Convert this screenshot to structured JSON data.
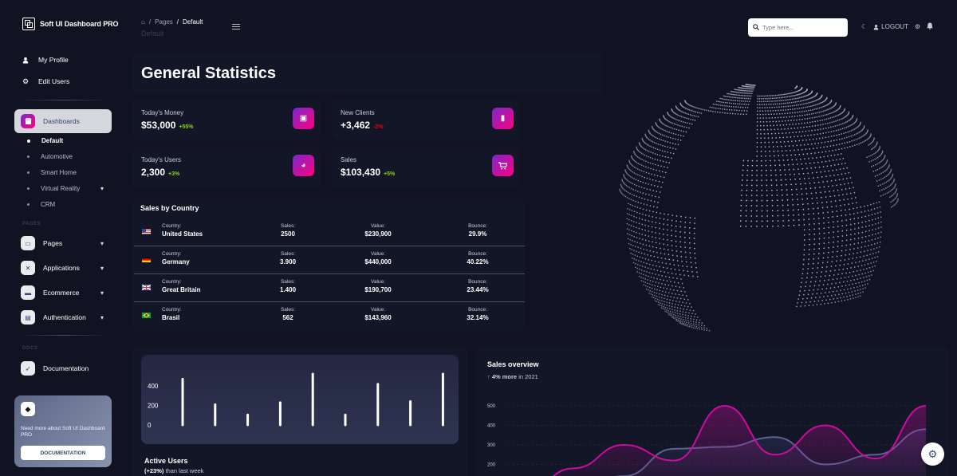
{
  "brand": {
    "title": "Soft UI Dashboard PRO"
  },
  "sidebar": {
    "top_links": [
      {
        "label": "My Profile",
        "icon": "user-icon"
      },
      {
        "label": "Edit Users",
        "icon": "gear-icon"
      }
    ],
    "dashboards": {
      "label": "Dashboards",
      "items": [
        {
          "label": "Default",
          "active": true
        },
        {
          "label": "Automotive"
        },
        {
          "label": "Smart Home"
        },
        {
          "label": "Virtual Reality"
        },
        {
          "label": "CRM"
        }
      ]
    },
    "pages_section": "PAGES",
    "nav": [
      {
        "label": "Pages"
      },
      {
        "label": "Applications"
      },
      {
        "label": "Ecommerce"
      },
      {
        "label": "Authentication"
      }
    ],
    "docs_section": "DOCS",
    "documentation": "Documentation",
    "help_card": {
      "text": "Need more about Soft UI Dashboard PRO",
      "button": "DOCUMENTATION"
    }
  },
  "topbar": {
    "breadcrumb": {
      "root": "Pages",
      "current": "Default"
    },
    "page_title": "Default",
    "search_placeholder": "Type here...",
    "logout": "LOGOUT"
  },
  "stats": {
    "title": "General Statistics",
    "cards": [
      {
        "label": "Today's Money",
        "value": "$53,000",
        "change": "+55%",
        "positive": true
      },
      {
        "label": "New Clients",
        "value": "+3,462",
        "change": "-2%",
        "positive": false
      },
      {
        "label": "Today's Users",
        "value": "2,300",
        "change": "+3%",
        "positive": true
      },
      {
        "label": "Sales",
        "value": "$103,430",
        "change": "+5%",
        "positive": true
      }
    ]
  },
  "sales_by_country": {
    "title": "Sales by Country",
    "headers": {
      "country": "Country:",
      "sales": "Sales:",
      "value": "Value:",
      "bounce": "Bounce:"
    },
    "rows": [
      {
        "country": "United States",
        "sales": "2500",
        "value": "$230,900",
        "bounce": "29.9%"
      },
      {
        "country": "Germany",
        "sales": "3.900",
        "value": "$440,000",
        "bounce": "40.22%"
      },
      {
        "country": "Great Britain",
        "sales": "1.400",
        "value": "$190,700",
        "bounce": "23.44%"
      },
      {
        "country": "Brasil",
        "sales": "562",
        "value": "$143,960",
        "bounce": "32.14%"
      }
    ]
  },
  "active_users": {
    "title": "Active Users",
    "change": "(+23%)",
    "suffix": "than last week"
  },
  "sales_overview": {
    "title": "Sales overview",
    "change": "4% more",
    "suffix": "in 2021"
  },
  "chart_data": [
    {
      "type": "bar",
      "yticks": [
        400,
        200,
        0
      ],
      "values": [
        450,
        200,
        100,
        220,
        500,
        100,
        400,
        230,
        500
      ],
      "ylim": [
        0,
        500
      ]
    },
    {
      "type": "line",
      "title": "Sales overview",
      "yticks": [
        500,
        400,
        300,
        200
      ],
      "series": [
        {
          "values": [
            50,
            180,
            300,
            220,
            500,
            250,
            400,
            230,
            500
          ],
          "color": "#cb0c9f"
        },
        {
          "values": [
            30,
            90,
            140,
            280,
            290,
            340,
            200,
            250,
            380
          ],
          "color": "#3a416f"
        }
      ]
    }
  ]
}
